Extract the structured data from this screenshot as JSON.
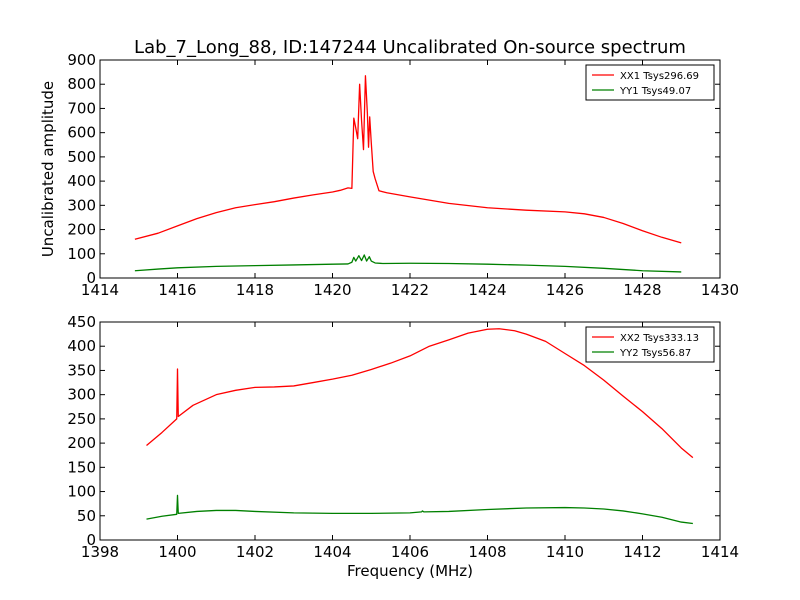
{
  "figure": {
    "title": "Lab_7_Long_88, ID:147244 Uncalibrated On-source spectrum",
    "xlabel": "Frequency (MHz)"
  },
  "chart_data": [
    {
      "type": "line",
      "ylabel": "Uncalibrated amplitude",
      "xlim": [
        1414,
        1430
      ],
      "ylim": [
        0,
        900
      ],
      "xticks": [
        1414,
        1416,
        1418,
        1420,
        1422,
        1424,
        1426,
        1428,
        1430
      ],
      "yticks": [
        0,
        100,
        200,
        300,
        400,
        500,
        600,
        700,
        800,
        900
      ],
      "legend_position": "top-right",
      "series": [
        {
          "name": "XX1 Tsys296.69",
          "color": "#ff0000",
          "points": [
            [
              1414.9,
              160
            ],
            [
              1415.5,
              185
            ],
            [
              1416,
              215
            ],
            [
              1416.5,
              245
            ],
            [
              1417,
              270
            ],
            [
              1417.5,
              290
            ],
            [
              1418,
              303
            ],
            [
              1418.5,
              315
            ],
            [
              1419,
              330
            ],
            [
              1419.5,
              343
            ],
            [
              1420,
              355
            ],
            [
              1420.2,
              362
            ],
            [
              1420.4,
              372
            ],
            [
              1420.5,
              370
            ],
            [
              1420.55,
              660
            ],
            [
              1420.6,
              620
            ],
            [
              1420.65,
              575
            ],
            [
              1420.7,
              800
            ],
            [
              1420.75,
              650
            ],
            [
              1420.8,
              530
            ],
            [
              1420.85,
              835
            ],
            [
              1420.9,
              680
            ],
            [
              1420.93,
              540
            ],
            [
              1420.96,
              665
            ],
            [
              1421.0,
              560
            ],
            [
              1421.05,
              440
            ],
            [
              1421.1,
              410
            ],
            [
              1421.2,
              360
            ],
            [
              1421.4,
              352
            ],
            [
              1422,
              335
            ],
            [
              1423,
              308
            ],
            [
              1424,
              290
            ],
            [
              1425,
              280
            ],
            [
              1426,
              273
            ],
            [
              1426.5,
              265
            ],
            [
              1427,
              250
            ],
            [
              1427.5,
              225
            ],
            [
              1428,
              195
            ],
            [
              1428.5,
              168
            ],
            [
              1429,
              145
            ]
          ]
        },
        {
          "name": "YY1 Tsys49.07",
          "color": "#008000",
          "points": [
            [
              1414.9,
              30
            ],
            [
              1415.5,
              37
            ],
            [
              1416,
              42
            ],
            [
              1417,
              48
            ],
            [
              1418,
              51
            ],
            [
              1419,
              54
            ],
            [
              1420,
              57
            ],
            [
              1420.4,
              58
            ],
            [
              1420.5,
              65
            ],
            [
              1420.55,
              85
            ],
            [
              1420.6,
              70
            ],
            [
              1420.68,
              92
            ],
            [
              1420.75,
              72
            ],
            [
              1420.82,
              95
            ],
            [
              1420.88,
              70
            ],
            [
              1420.95,
              88
            ],
            [
              1421.0,
              70
            ],
            [
              1421.1,
              62
            ],
            [
              1421.3,
              60
            ],
            [
              1422,
              61
            ],
            [
              1423,
              60
            ],
            [
              1424,
              57
            ],
            [
              1425,
              53
            ],
            [
              1426,
              48
            ],
            [
              1427,
              40
            ],
            [
              1428,
              30
            ],
            [
              1429,
              25
            ]
          ]
        }
      ]
    },
    {
      "type": "line",
      "ylabel": "",
      "xlim": [
        1398,
        1414
      ],
      "ylim": [
        0,
        450
      ],
      "xticks": [
        1398,
        1400,
        1402,
        1404,
        1406,
        1408,
        1410,
        1412,
        1414
      ],
      "yticks": [
        0,
        50,
        100,
        150,
        200,
        250,
        300,
        350,
        400,
        450
      ],
      "legend_position": "top-right",
      "series": [
        {
          "name": "XX2 Tsys333.13",
          "color": "#ff0000",
          "points": [
            [
              1399.2,
              195
            ],
            [
              1399.6,
              222
            ],
            [
              1399.98,
              250
            ],
            [
              1400,
              353
            ],
            [
              1400.02,
              255
            ],
            [
              1400.4,
              278
            ],
            [
              1401,
              300
            ],
            [
              1401.5,
              309
            ],
            [
              1402,
              315
            ],
            [
              1402.5,
              316
            ],
            [
              1403,
              318
            ],
            [
              1403.5,
              325
            ],
            [
              1404,
              332
            ],
            [
              1404.5,
              340
            ],
            [
              1405,
              352
            ],
            [
              1405.5,
              365
            ],
            [
              1406,
              380
            ],
            [
              1406.5,
              400
            ],
            [
              1407,
              413
            ],
            [
              1407.5,
              427
            ],
            [
              1408,
              435
            ],
            [
              1408.3,
              436
            ],
            [
              1408.7,
              432
            ],
            [
              1409,
              425
            ],
            [
              1409.5,
              410
            ],
            [
              1410,
              385
            ],
            [
              1410.5,
              360
            ],
            [
              1411,
              330
            ],
            [
              1411.5,
              297
            ],
            [
              1412,
              265
            ],
            [
              1412.5,
              230
            ],
            [
              1413,
              190
            ],
            [
              1413.3,
              170
            ]
          ]
        },
        {
          "name": "YY2 Tsys56.87",
          "color": "#008000",
          "points": [
            [
              1399.2,
              43
            ],
            [
              1399.6,
              49
            ],
            [
              1399.98,
              53
            ],
            [
              1400,
              92
            ],
            [
              1400.02,
              55
            ],
            [
              1400.5,
              59
            ],
            [
              1401,
              61
            ],
            [
              1401.5,
              61
            ],
            [
              1402,
              59
            ],
            [
              1403,
              56
            ],
            [
              1404,
              55
            ],
            [
              1405,
              55
            ],
            [
              1406,
              56
            ],
            [
              1406.3,
              58
            ],
            [
              1406.32,
              60
            ],
            [
              1406.36,
              58
            ],
            [
              1407,
              59
            ],
            [
              1408,
              63
            ],
            [
              1409,
              66
            ],
            [
              1410,
              67
            ],
            [
              1410.5,
              66
            ],
            [
              1411,
              64
            ],
            [
              1411.5,
              60
            ],
            [
              1412,
              54
            ],
            [
              1412.5,
              47
            ],
            [
              1413,
              37
            ],
            [
              1413.3,
              34
            ]
          ]
        }
      ]
    }
  ]
}
